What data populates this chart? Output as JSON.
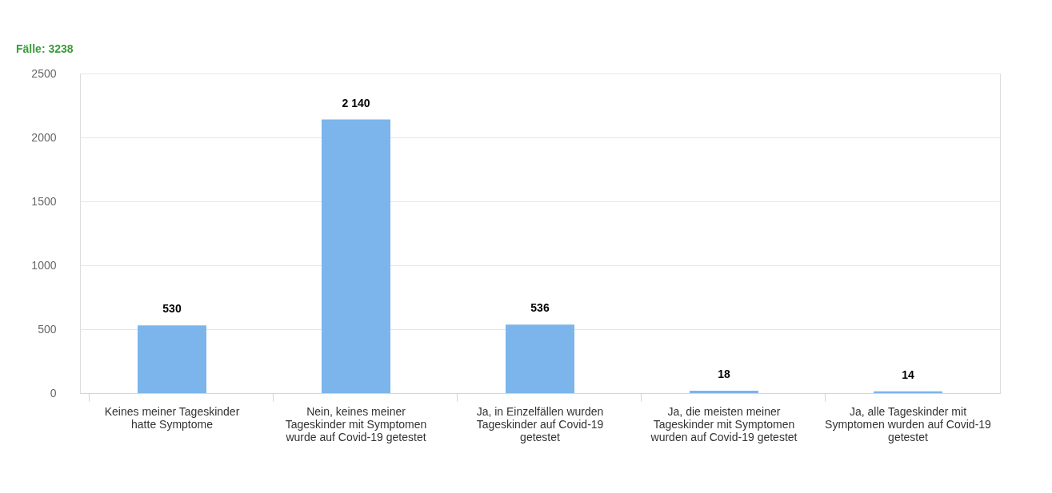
{
  "chart_data": {
    "type": "bar",
    "categories": [
      "Keines meiner Tageskinder hatte Symptome",
      "Nein, keines meiner Tageskinder mit Symptomen wurde auf Covid-19 getestet",
      "Ja, in Einzelfällen wurden Tageskinder auf Covid-19 getestet",
      "Ja, die meisten meiner Tageskinder mit Symptomen wurden auf Covid-19 getestet",
      "Ja, alle Tageskinder mit Symptomen wurden auf Covid-19 getestet"
    ],
    "values": [
      530,
      2140,
      536,
      18,
      14
    ],
    "value_labels": [
      "530",
      "2 140",
      "536",
      "18",
      "14"
    ],
    "color": "#7cb5ec",
    "ylim": [
      0,
      2500
    ],
    "yticks": [
      0,
      500,
      1000,
      1500,
      2000,
      2500
    ],
    "grid": "y",
    "annotations": [
      "Fälle: 3238"
    ]
  }
}
